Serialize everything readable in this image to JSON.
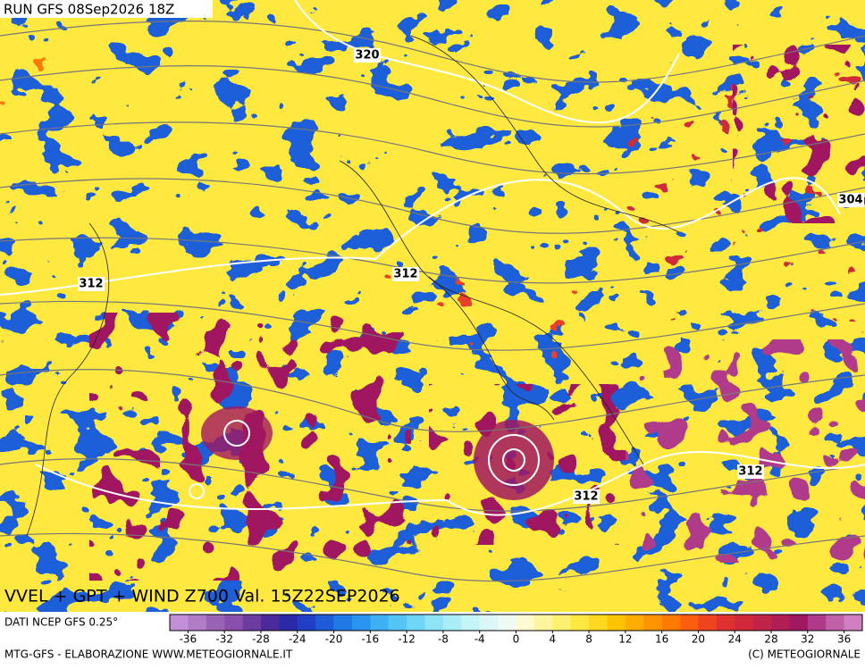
{
  "header": {
    "title": "RUN GFS 08Sep2026 18Z",
    "subtitle": "VVEL + GPT + WIND Z700 Val. 15Z22SEP2026"
  },
  "map": {
    "contour_labels": [
      320,
      312,
      312,
      304,
      312,
      312
    ]
  },
  "colorbar": {
    "range": [
      -38,
      38
    ],
    "ticks": [
      -36,
      -32,
      -28,
      -24,
      -20,
      -16,
      -12,
      -8,
      -4,
      0,
      4,
      8,
      12,
      16,
      20,
      24,
      28,
      32,
      36
    ],
    "colors": [
      "#c38fd6",
      "#b07cc8",
      "#9a63b8",
      "#8a4fac",
      "#6d3ca0",
      "#4b2a9a",
      "#2a2aa8",
      "#1f3fc4",
      "#1e5bd8",
      "#1f7ae6",
      "#2a95ee",
      "#3fb0f4",
      "#55c5f6",
      "#6fd6f7",
      "#8ee3f7",
      "#a9edf7",
      "#c4f4f6",
      "#dcf8f6",
      "#eefbf4",
      "#fffbd0",
      "#fff5a0",
      "#fff070",
      "#ffe840",
      "#ffd920",
      "#ffc400",
      "#ffae00",
      "#ff9400",
      "#ff7a00",
      "#ff5e10",
      "#f04420",
      "#e03030",
      "#d02a3a",
      "#c02448",
      "#b01e55",
      "#a01860",
      "#b03a8a",
      "#c060a8",
      "#d080c0"
    ]
  },
  "footer": {
    "source": "DATI NCEP GFS 0.25°",
    "credit": "MTG-GFS - ELABORAZIONE WWW.METEOGIORNALE.IT",
    "copyright": "(C) METEOGIORNALE"
  }
}
